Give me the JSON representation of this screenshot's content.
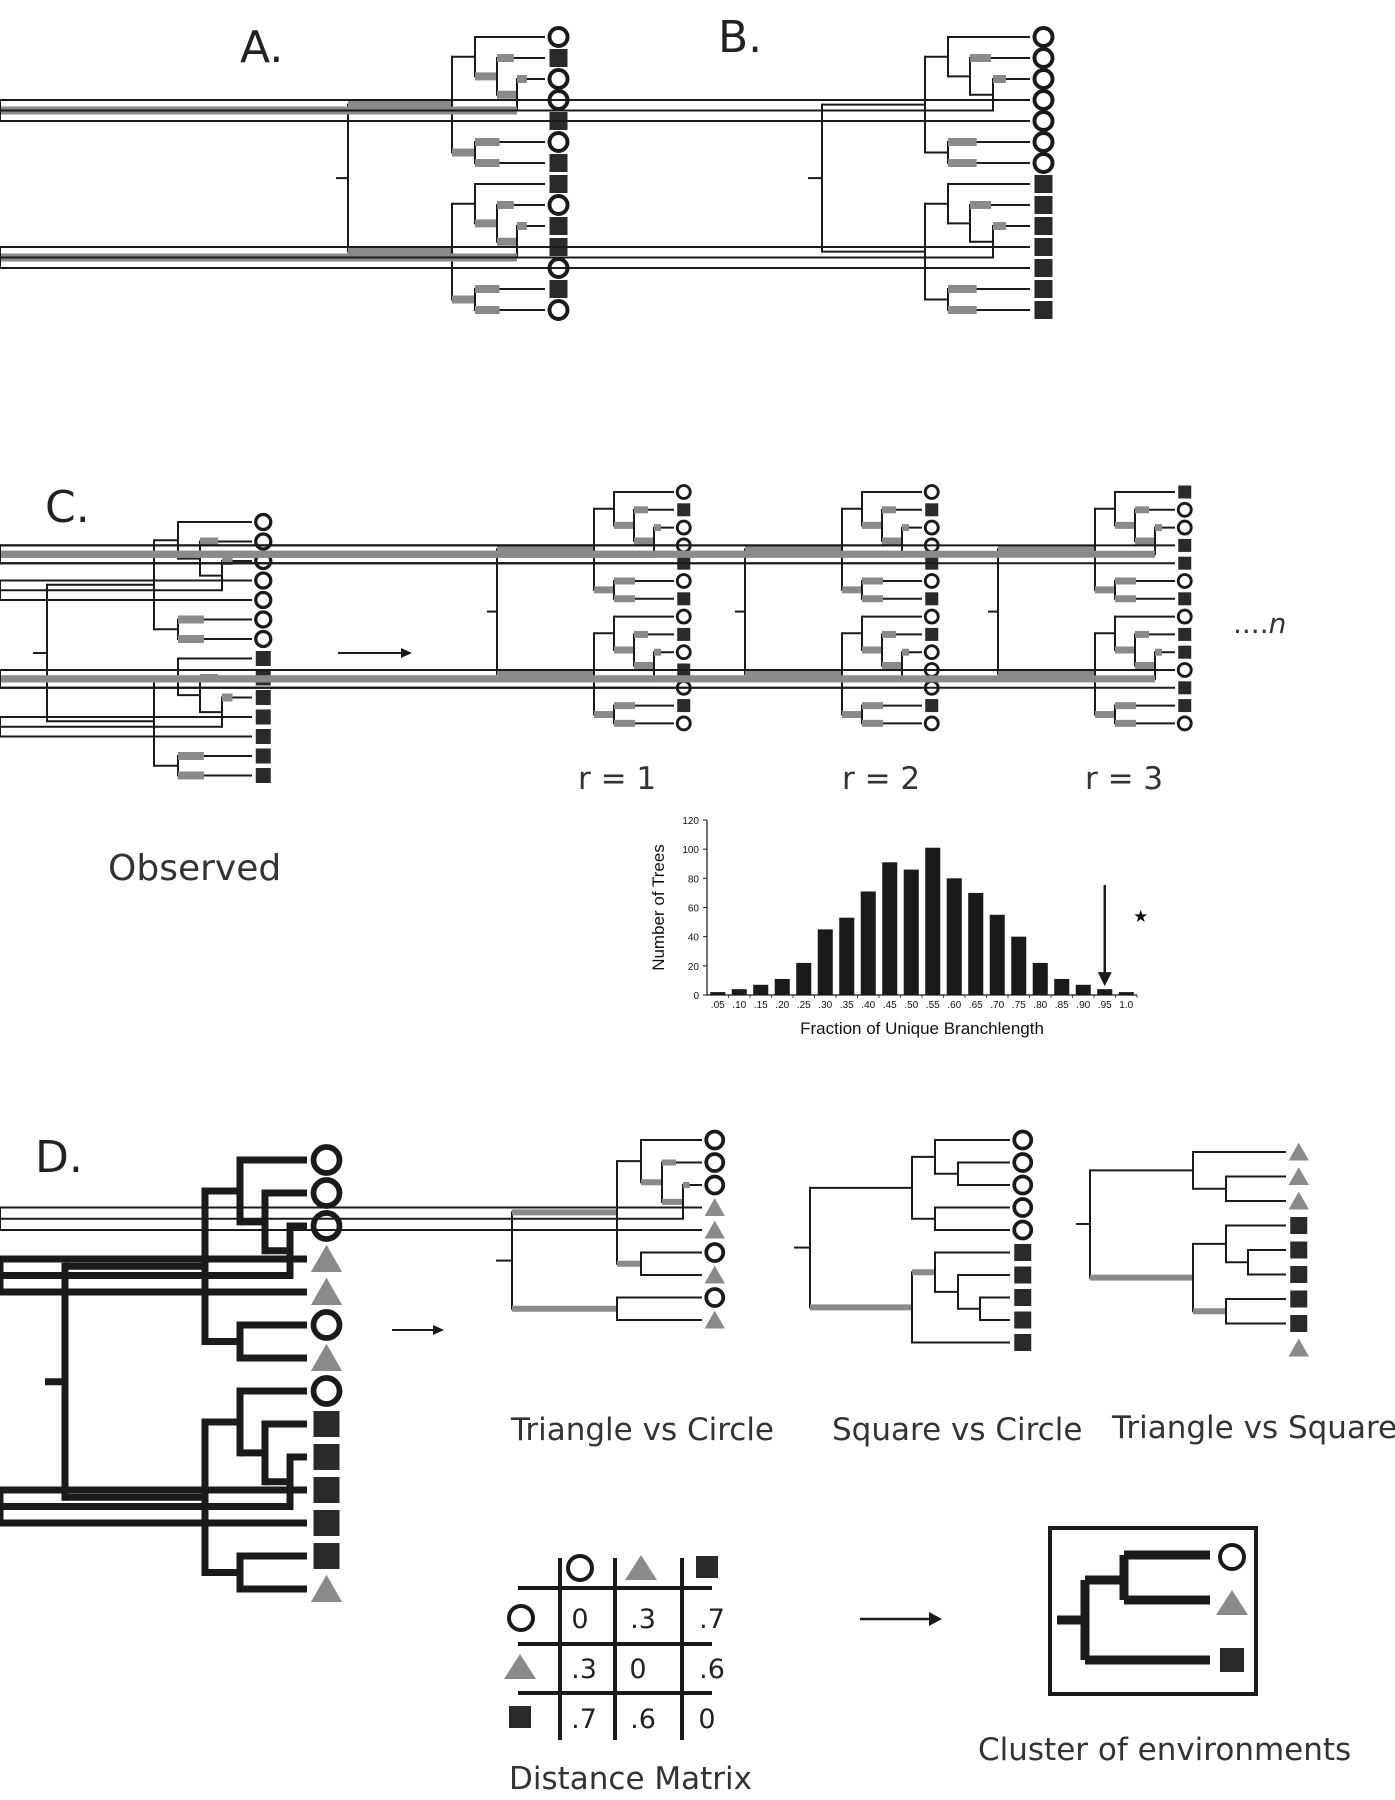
{
  "colors": {
    "black": "#1a1a1a",
    "gray": "#8a8a8a",
    "dark": "#2a2a2a"
  },
  "panels": {
    "a": "A.",
    "b": "B.",
    "c": "C.",
    "d": "D."
  },
  "panel_c": {
    "observed_label": "Observed",
    "replicates": [
      "r = 1",
      "r = 2",
      "r = 3"
    ],
    "ellipsis": "....",
    "ellipsis_n": "n"
  },
  "chart_data": {
    "type": "bar",
    "title": "",
    "xlabel": "Fraction of Unique Branchlength",
    "ylabel": "Number of Trees",
    "ylim": [
      0,
      120
    ],
    "yticks": [
      "0",
      "20",
      "40",
      "60",
      "80",
      "100",
      "120"
    ],
    "categories": [
      ".05",
      ".10",
      ".15",
      ".20",
      ".25",
      ".30",
      ".35",
      ".40",
      ".45",
      ".50",
      ".55",
      ".60",
      ".65",
      ".70",
      ".75",
      ".80",
      ".85",
      ".90",
      ".95",
      "1.0"
    ],
    "values": [
      2,
      4,
      7,
      11,
      22,
      45,
      53,
      71,
      91,
      86,
      101,
      80,
      70,
      55,
      40,
      22,
      11,
      7,
      4,
      2
    ],
    "annotation": {
      "category": ".95",
      "marker": "★"
    }
  },
  "panel_d": {
    "comparisons": [
      "Triangle vs Circle",
      "Square vs Circle",
      "Triangle vs Square"
    ],
    "matrix_title": "Distance Matrix",
    "matrix": [
      [
        "0",
        ".3",
        ".7"
      ],
      [
        ".3",
        "0",
        ".6"
      ],
      [
        ".7",
        ".6",
        "0"
      ]
    ],
    "cluster_title": "Cluster of environments"
  }
}
